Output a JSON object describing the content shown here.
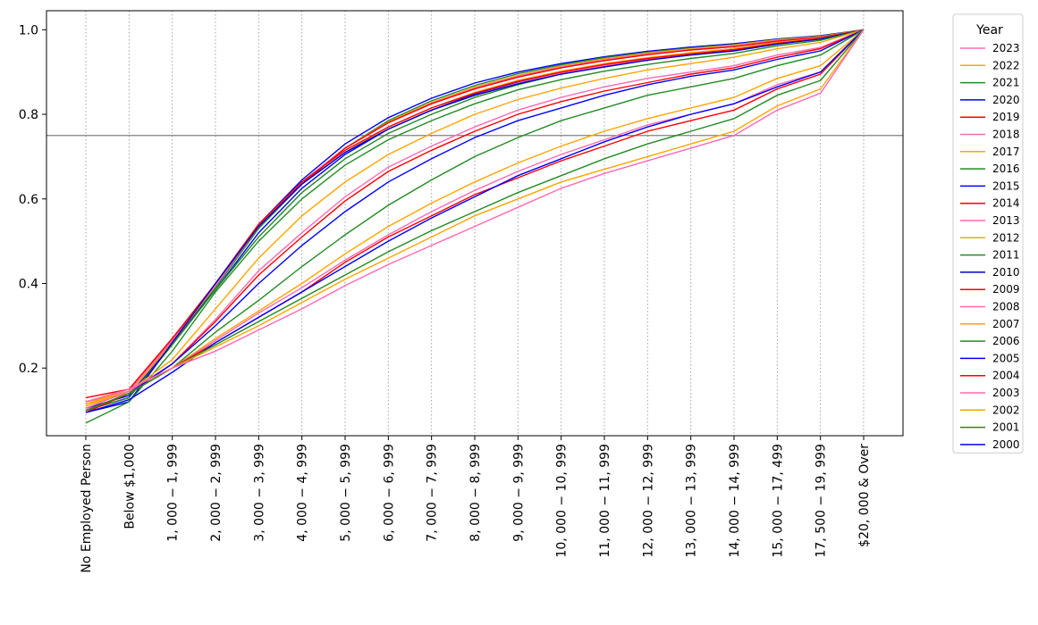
{
  "chart_data": {
    "type": "line",
    "categories": [
      "No Employed Person",
      "Below $1,000",
      "1, 000 − 1, 999",
      "2, 000 − 2, 999",
      "3, 000 − 3, 999",
      "4, 000 − 4, 999",
      "5, 000 − 5, 999",
      "6, 000 − 6, 999",
      "7, 000 − 7, 999",
      "8, 000 − 8, 999",
      "9, 000 − 9, 999",
      "10, 000 − 10, 999",
      "11, 000 − 11, 999",
      "12, 000 − 12, 999",
      "13, 000 − 13, 999",
      "14, 000 − 14, 999",
      "15, 000 − 17, 499",
      "17, 500 − 19, 999",
      "$20, 000 & Over"
    ],
    "ylim": [
      0.04,
      1.045
    ],
    "yticks": [
      0.2,
      0.4,
      0.6,
      0.8,
      1.0
    ],
    "ytick_labels": [
      "0.2",
      "0.4",
      "0.6",
      "0.8",
      "1.0"
    ],
    "hline": 0.75,
    "grid_x": true,
    "legend": {
      "title": "Year",
      "placement": "outside right"
    },
    "series": [
      {
        "name": "2023",
        "color": "#ff69b4",
        "values": [
          0.12,
          0.15,
          0.2,
          0.24,
          0.29,
          0.34,
          0.395,
          0.445,
          0.49,
          0.535,
          0.58,
          0.625,
          0.66,
          0.69,
          0.72,
          0.75,
          0.81,
          0.85,
          1.0
        ]
      },
      {
        "name": "2022",
        "color": "#ffa500",
        "values": [
          0.115,
          0.15,
          0.2,
          0.25,
          0.3,
          0.355,
          0.41,
          0.46,
          0.51,
          0.56,
          0.6,
          0.64,
          0.67,
          0.7,
          0.73,
          0.76,
          0.82,
          0.86,
          1.0
        ]
      },
      {
        "name": "2021",
        "color": "#228b22",
        "values": [
          0.1,
          0.14,
          0.2,
          0.255,
          0.31,
          0.365,
          0.42,
          0.475,
          0.525,
          0.57,
          0.615,
          0.655,
          0.695,
          0.73,
          0.76,
          0.79,
          0.845,
          0.88,
          1.0
        ]
      },
      {
        "name": "2020",
        "color": "#0000ff",
        "values": [
          0.095,
          0.125,
          0.19,
          0.26,
          0.32,
          0.38,
          0.44,
          0.5,
          0.555,
          0.605,
          0.655,
          0.695,
          0.735,
          0.77,
          0.8,
          0.825,
          0.865,
          0.9,
          1.0
        ]
      },
      {
        "name": "2019",
        "color": "#ff0000",
        "values": [
          0.095,
          0.14,
          0.2,
          0.26,
          0.32,
          0.38,
          0.45,
          0.51,
          0.56,
          0.61,
          0.65,
          0.69,
          0.725,
          0.76,
          0.785,
          0.81,
          0.86,
          0.895,
          1.0
        ]
      },
      {
        "name": "2018",
        "color": "#ff69b4",
        "values": [
          0.095,
          0.14,
          0.2,
          0.265,
          0.33,
          0.39,
          0.455,
          0.515,
          0.57,
          0.62,
          0.665,
          0.705,
          0.74,
          0.775,
          0.8,
          0.825,
          0.87,
          0.9,
          1.0
        ]
      },
      {
        "name": "2017",
        "color": "#ffa500",
        "values": [
          0.1,
          0.14,
          0.2,
          0.27,
          0.335,
          0.4,
          0.47,
          0.535,
          0.59,
          0.64,
          0.685,
          0.725,
          0.76,
          0.79,
          0.815,
          0.84,
          0.885,
          0.915,
          1.0
        ]
      },
      {
        "name": "2016",
        "color": "#228b22",
        "values": [
          0.1,
          0.14,
          0.2,
          0.285,
          0.36,
          0.44,
          0.515,
          0.585,
          0.645,
          0.7,
          0.745,
          0.785,
          0.815,
          0.845,
          0.865,
          0.885,
          0.915,
          0.94,
          1.0
        ]
      },
      {
        "name": "2015",
        "color": "#0000ff",
        "values": [
          0.1,
          0.14,
          0.21,
          0.3,
          0.4,
          0.49,
          0.57,
          0.64,
          0.695,
          0.745,
          0.785,
          0.815,
          0.845,
          0.87,
          0.89,
          0.905,
          0.93,
          0.95,
          1.0
        ]
      },
      {
        "name": "2014",
        "color": "#ff0000",
        "values": [
          0.1,
          0.14,
          0.21,
          0.31,
          0.42,
          0.51,
          0.595,
          0.665,
          0.715,
          0.76,
          0.8,
          0.83,
          0.855,
          0.875,
          0.895,
          0.91,
          0.935,
          0.955,
          1.0
        ]
      },
      {
        "name": "2013",
        "color": "#ff69b4",
        "values": [
          0.105,
          0.145,
          0.21,
          0.315,
          0.43,
          0.52,
          0.605,
          0.675,
          0.725,
          0.77,
          0.81,
          0.84,
          0.865,
          0.885,
          0.9,
          0.915,
          0.94,
          0.958,
          1.0
        ]
      },
      {
        "name": "2012",
        "color": "#ffa500",
        "values": [
          0.11,
          0.145,
          0.22,
          0.34,
          0.46,
          0.56,
          0.64,
          0.705,
          0.755,
          0.8,
          0.835,
          0.862,
          0.885,
          0.905,
          0.92,
          0.935,
          0.955,
          0.97,
          1.0
        ]
      },
      {
        "name": "2011",
        "color": "#228b22",
        "values": [
          0.07,
          0.12,
          0.24,
          0.38,
          0.5,
          0.6,
          0.68,
          0.74,
          0.785,
          0.825,
          0.858,
          0.882,
          0.902,
          0.918,
          0.932,
          0.944,
          0.962,
          0.975,
          1.0
        ]
      },
      {
        "name": "2010",
        "color": "#0000cd",
        "values": [
          0.095,
          0.12,
          0.26,
          0.4,
          0.535,
          0.635,
          0.71,
          0.765,
          0.81,
          0.845,
          0.872,
          0.895,
          0.912,
          0.928,
          0.94,
          0.95,
          0.966,
          0.978,
          1.0
        ]
      },
      {
        "name": "2009",
        "color": "#ff0000",
        "values": [
          0.13,
          0.15,
          0.27,
          0.4,
          0.54,
          0.64,
          0.715,
          0.77,
          0.815,
          0.85,
          0.878,
          0.9,
          0.918,
          0.932,
          0.943,
          0.953,
          0.968,
          0.979,
          1.0
        ]
      },
      {
        "name": "2008",
        "color": "#ff69b4",
        "values": [
          0.12,
          0.145,
          0.265,
          0.395,
          0.535,
          0.635,
          0.71,
          0.765,
          0.81,
          0.845,
          0.874,
          0.897,
          0.915,
          0.93,
          0.942,
          0.952,
          0.967,
          0.978,
          1.0
        ]
      },
      {
        "name": "2007",
        "color": "#ffa500",
        "values": [
          0.115,
          0.14,
          0.26,
          0.395,
          0.535,
          0.635,
          0.71,
          0.77,
          0.815,
          0.852,
          0.88,
          0.902,
          0.92,
          0.934,
          0.946,
          0.955,
          0.97,
          0.98,
          1.0
        ]
      },
      {
        "name": "2006",
        "color": "#228b22",
        "values": [
          0.1,
          0.13,
          0.255,
          0.385,
          0.51,
          0.615,
          0.695,
          0.755,
          0.8,
          0.84,
          0.87,
          0.895,
          0.914,
          0.93,
          0.943,
          0.953,
          0.968,
          0.979,
          1.0
        ]
      },
      {
        "name": "2005",
        "color": "#0000ff",
        "values": [
          0.1,
          0.13,
          0.26,
          0.385,
          0.52,
          0.625,
          0.705,
          0.765,
          0.81,
          0.848,
          0.877,
          0.9,
          0.918,
          0.933,
          0.945,
          0.955,
          0.97,
          0.98,
          1.0
        ]
      },
      {
        "name": "2004",
        "color": "#ff0000",
        "values": [
          0.12,
          0.15,
          0.27,
          0.395,
          0.535,
          0.635,
          0.72,
          0.78,
          0.825,
          0.86,
          0.888,
          0.91,
          0.927,
          0.941,
          0.952,
          0.96,
          0.973,
          0.982,
          1.0
        ]
      },
      {
        "name": "2003",
        "color": "#ff69b4",
        "values": [
          0.12,
          0.15,
          0.27,
          0.395,
          0.535,
          0.64,
          0.72,
          0.78,
          0.826,
          0.862,
          0.89,
          0.912,
          0.929,
          0.943,
          0.953,
          0.962,
          0.975,
          0.983,
          1.0
        ]
      },
      {
        "name": "2002",
        "color": "#ffa500",
        "values": [
          0.115,
          0.145,
          0.265,
          0.395,
          0.535,
          0.64,
          0.72,
          0.782,
          0.828,
          0.864,
          0.892,
          0.914,
          0.931,
          0.945,
          0.955,
          0.964,
          0.976,
          0.984,
          1.0
        ]
      },
      {
        "name": "2001",
        "color": "#228b22",
        "values": [
          0.1,
          0.13,
          0.26,
          0.39,
          0.53,
          0.635,
          0.72,
          0.785,
          0.832,
          0.868,
          0.896,
          0.917,
          0.934,
          0.947,
          0.957,
          0.965,
          0.977,
          0.985,
          1.0
        ]
      },
      {
        "name": "2000",
        "color": "#0000ff",
        "values": [
          0.105,
          0.135,
          0.265,
          0.4,
          0.54,
          0.645,
          0.73,
          0.792,
          0.838,
          0.874,
          0.9,
          0.92,
          0.936,
          0.949,
          0.959,
          0.967,
          0.978,
          0.986,
          1.0
        ]
      }
    ]
  }
}
